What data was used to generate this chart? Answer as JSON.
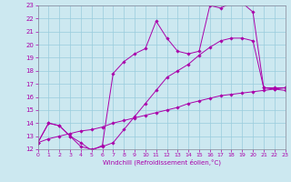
{
  "xlabel": "Windchill (Refroidissement éolien,°C)",
  "xlim": [
    0,
    23
  ],
  "ylim": [
    12,
    23
  ],
  "bg_color": "#cce8f0",
  "grid_color": "#99ccdd",
  "line_color": "#aa00aa",
  "line1_x": [
    0,
    1,
    2,
    3,
    4,
    5,
    6,
    7,
    8,
    9,
    10,
    11,
    12,
    13,
    14,
    15,
    16,
    17,
    18,
    19,
    20,
    21,
    22,
    23
  ],
  "line1_y": [
    12.5,
    12.8,
    13.0,
    13.2,
    13.4,
    13.5,
    13.7,
    14.0,
    14.2,
    14.4,
    14.6,
    14.8,
    15.0,
    15.2,
    15.5,
    15.7,
    15.9,
    16.1,
    16.2,
    16.3,
    16.4,
    16.5,
    16.6,
    16.7
  ],
  "line2_x": [
    0,
    1,
    2,
    3,
    4,
    5,
    6,
    7,
    8,
    9,
    10,
    11,
    12,
    13,
    14,
    15,
    16,
    17,
    18,
    19,
    20,
    21,
    22,
    23
  ],
  "line2_y": [
    12.5,
    14.0,
    13.8,
    13.0,
    12.2,
    12.0,
    12.2,
    12.5,
    13.5,
    14.5,
    15.5,
    16.5,
    17.5,
    18.0,
    18.5,
    19.2,
    19.8,
    20.3,
    20.5,
    20.5,
    20.3,
    16.7,
    16.6,
    16.5
  ],
  "line3_x": [
    0,
    1,
    2,
    3,
    4,
    5,
    6,
    7,
    8,
    9,
    10,
    11,
    12,
    13,
    14,
    15,
    16,
    17,
    18,
    19,
    20,
    21,
    22,
    23
  ],
  "line3_y": [
    12.5,
    14.0,
    13.8,
    13.0,
    12.5,
    11.9,
    12.3,
    17.8,
    18.7,
    19.3,
    19.7,
    21.8,
    20.5,
    19.5,
    19.3,
    19.5,
    23.0,
    22.8,
    23.2,
    23.2,
    22.5,
    16.7,
    16.7,
    16.7
  ]
}
